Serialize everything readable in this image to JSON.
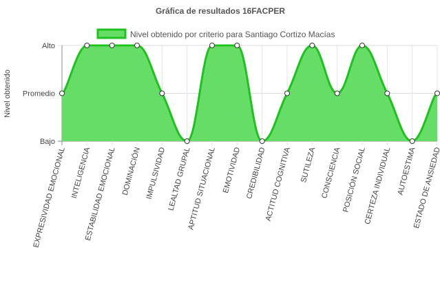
{
  "chart_data": {
    "type": "area",
    "title": "Gráfica de resultados 16FACPER",
    "ylabel": "Nivel obtenido",
    "xlabel": "",
    "y_levels": [
      "Bajo",
      "Promedio",
      "Alto"
    ],
    "ylim": [
      0,
      2
    ],
    "categories": [
      "EXPRESIVIDAD EMOCIONAL",
      "INTELIGENCIA",
      "ESTABILIDAD EMOCIONAL",
      "DOMINACIÓN",
      "IMPULSIVIDAD",
      "LEALTAD GRUPAL",
      "APTITUD SITUACIONAL",
      "EMOTIVIDAD",
      "CREDIBILIDAD",
      "ACTITUD COGNITIVA",
      "SUTILEZA",
      "CONSCIENCIA",
      "POSICIÓN SOCIAL",
      "CERTEZA INDIVIDUAL",
      "AUTOESTIMA",
      "ESTADO DE ANSIEDAD"
    ],
    "series": [
      {
        "name": "Nivel obtenido por criterio para Santiago Cortizo Macías",
        "values": [
          1,
          2,
          2,
          2,
          1,
          0,
          2,
          2,
          0,
          1,
          2,
          1,
          2,
          1,
          0,
          1
        ],
        "color": "#1ec21e",
        "fill": "#66dd66"
      }
    ],
    "grid": true,
    "legend_position": "top"
  }
}
